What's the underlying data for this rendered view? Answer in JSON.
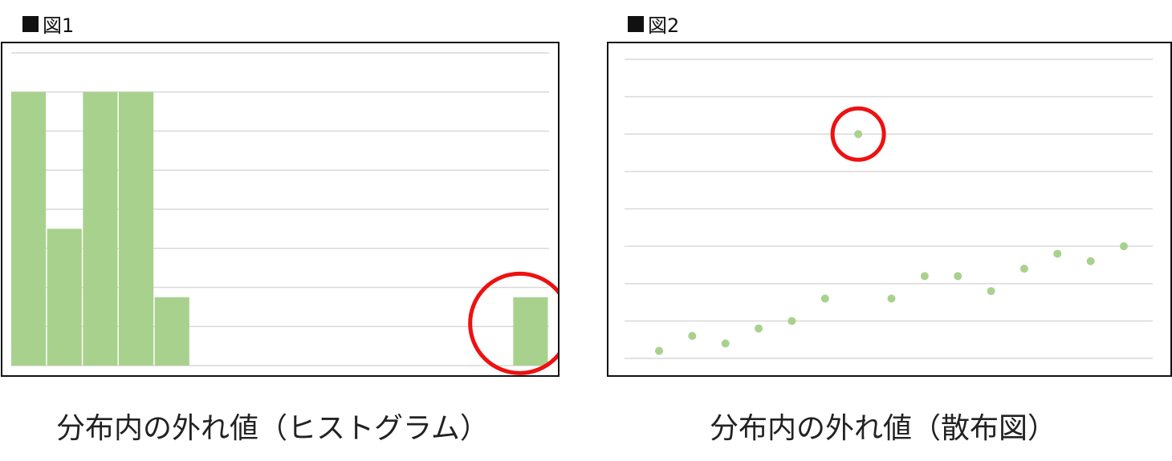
{
  "figures": [
    {
      "label": "図1",
      "caption": "分布内の外れ値（ヒストグラム）"
    },
    {
      "label": "図2",
      "caption": "分布内の外れ値（散布図）"
    }
  ],
  "chart_data": [
    {
      "type": "bar",
      "title": "",
      "xlabel": "",
      "ylabel": "",
      "ylim": [
        0,
        4
      ],
      "grid": true,
      "gridline_count": 9,
      "bar_color": "#a9d18e",
      "highlight_color": "#ee1111",
      "highlight_index": 14,
      "values": [
        4,
        2,
        4,
        4,
        1,
        0,
        0,
        0,
        0,
        0,
        0,
        0,
        0,
        0,
        1
      ]
    },
    {
      "type": "scatter",
      "title": "",
      "xlabel": "",
      "ylabel": "",
      "xlim": [
        0,
        16
      ],
      "ylim": [
        0,
        8
      ],
      "grid": true,
      "point_color": "#a9d18e",
      "highlight_color": "#ee1111",
      "highlight_index": 6,
      "points": [
        {
          "x": 1,
          "y": 0.2
        },
        {
          "x": 2,
          "y": 0.6
        },
        {
          "x": 3,
          "y": 0.4
        },
        {
          "x": 4,
          "y": 0.8
        },
        {
          "x": 5,
          "y": 1.0
        },
        {
          "x": 6,
          "y": 1.6
        },
        {
          "x": 7,
          "y": 6.0
        },
        {
          "x": 8,
          "y": 1.6
        },
        {
          "x": 9,
          "y": 2.2
        },
        {
          "x": 10,
          "y": 2.2
        },
        {
          "x": 11,
          "y": 1.8
        },
        {
          "x": 12,
          "y": 2.4
        },
        {
          "x": 13,
          "y": 2.8
        },
        {
          "x": 14,
          "y": 2.6
        },
        {
          "x": 15,
          "y": 3.0
        }
      ]
    }
  ]
}
